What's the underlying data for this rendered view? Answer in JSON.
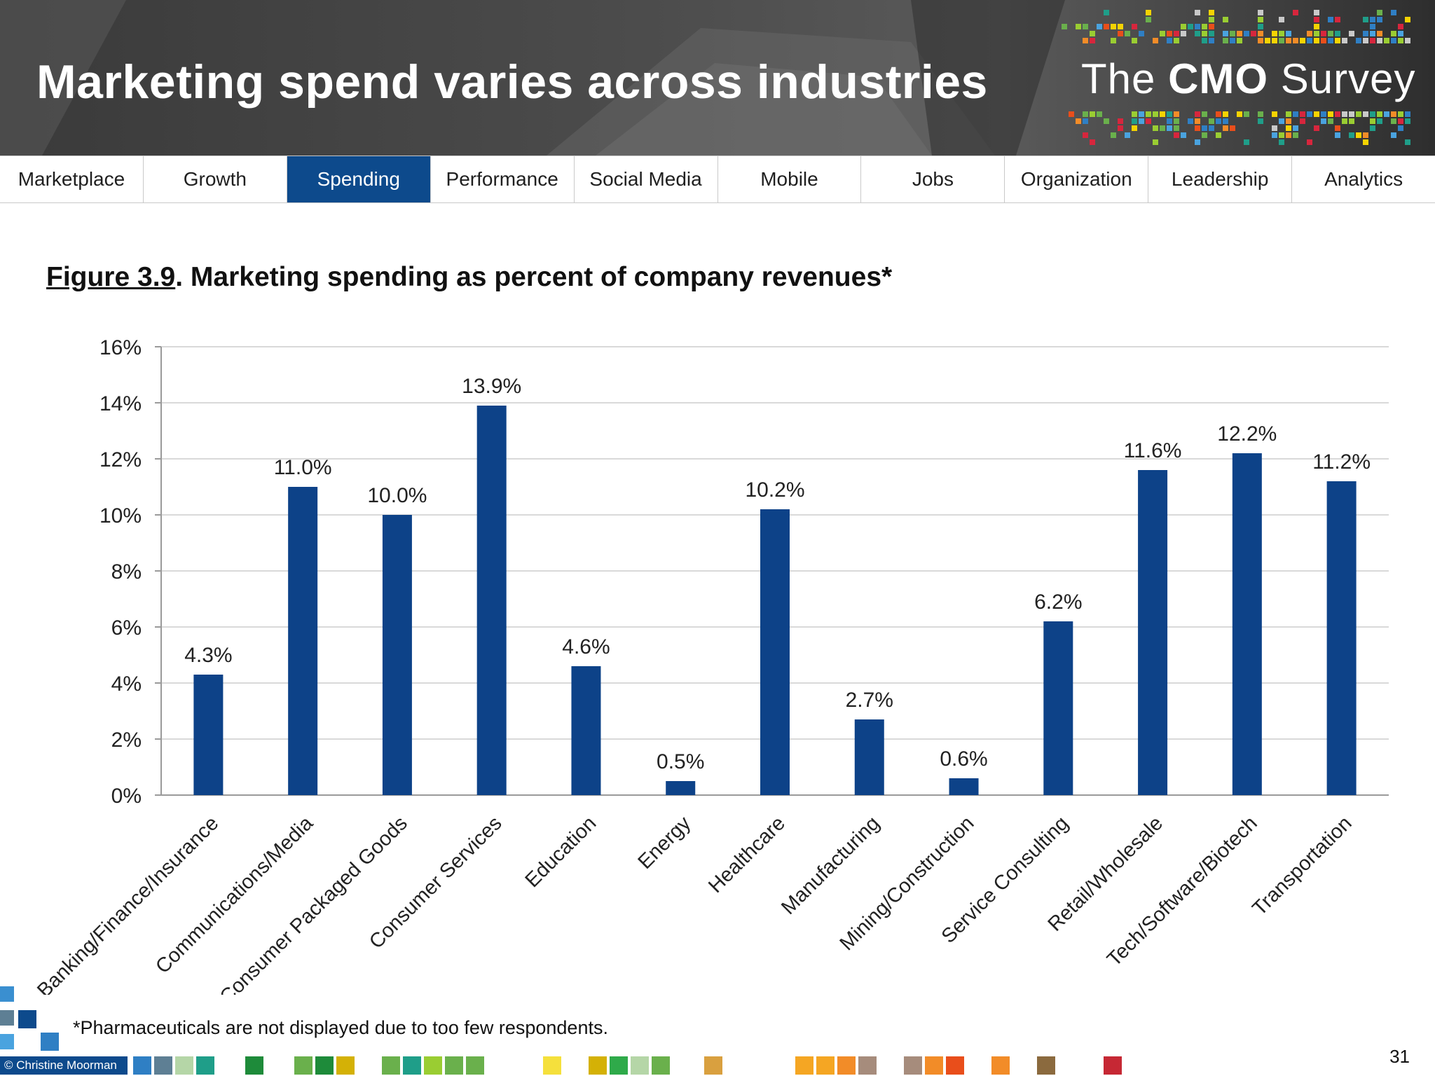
{
  "header": {
    "title": "Marketing spend varies across industries",
    "logo": {
      "prefix": "The ",
      "bold": "CMO",
      "suffix": " Survey"
    }
  },
  "nav": {
    "tabs": [
      {
        "label": "Marketplace",
        "active": false
      },
      {
        "label": "Growth",
        "active": false
      },
      {
        "label": "Spending",
        "active": true
      },
      {
        "label": "Performance",
        "active": false
      },
      {
        "label": "Social Media",
        "active": false
      },
      {
        "label": "Mobile",
        "active": false
      },
      {
        "label": "Jobs",
        "active": false
      },
      {
        "label": "Organization",
        "active": false
      },
      {
        "label": "Leadership",
        "active": false
      },
      {
        "label": "Analytics",
        "active": false
      }
    ],
    "active_color": "#0d4a8c"
  },
  "figure": {
    "number": "Figure 3.9",
    "rest": ".  Marketing spending as percent of company revenues*"
  },
  "chart_data": {
    "type": "bar",
    "categories": [
      "Banking/Finance/Insurance",
      "Communications/Media",
      "Consumer Packaged Goods",
      "Consumer Services",
      "Education",
      "Energy",
      "Healthcare",
      "Manufacturing",
      "Mining/Construction",
      "Service Consulting",
      "Retail/Wholesale",
      "Tech/Software/Biotech",
      "Transportation"
    ],
    "values": [
      4.3,
      11.0,
      10.0,
      13.9,
      4.6,
      0.5,
      10.2,
      2.7,
      0.6,
      6.2,
      11.6,
      12.2,
      11.2
    ],
    "value_labels": [
      "4.3%",
      "11.0%",
      "10.0%",
      "13.9%",
      "4.6%",
      "0.5%",
      "10.2%",
      "2.7%",
      "0.6%",
      "6.2%",
      "11.6%",
      "12.2%",
      "11.2%"
    ],
    "yticks": [
      "0%",
      "2%",
      "4%",
      "6%",
      "8%",
      "10%",
      "12%",
      "14%",
      "16%"
    ],
    "ylim": [
      0,
      16
    ],
    "grid": true,
    "bar_color": "#0d4288",
    "title": "",
    "xlabel": "",
    "ylabel": ""
  },
  "footnote": "*Pharmaceuticals are not displayed due to too few respondents.",
  "copyright": "© Christine Moorman",
  "page_number": "31"
}
